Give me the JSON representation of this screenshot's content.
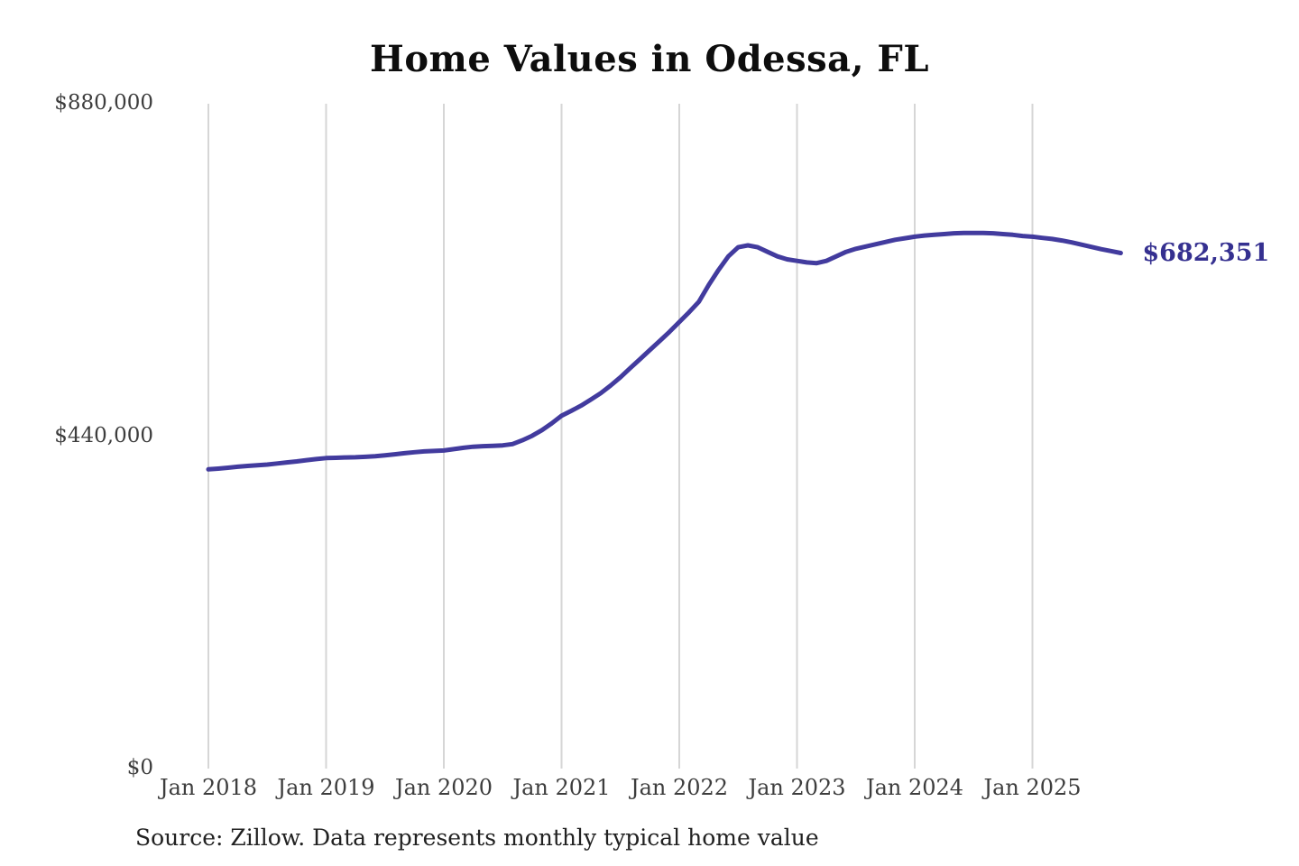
{
  "page": {
    "background_color": "#ffffff"
  },
  "chart_data": {
    "type": "line",
    "title": "Home Values in Odessa, FL",
    "source_note": "Source: Zillow. Data represents monthly typical home value",
    "xlabel": "",
    "ylabel": "",
    "ylim": [
      0,
      880000
    ],
    "grid": "vertical-yearly-gridlines-only",
    "legend": "none",
    "line_color": "#423b9e",
    "gridline_color": "#d6d6d6",
    "end_label": "$682,351",
    "end_value": 682351,
    "x_tick_labels": [
      "Jan 2018",
      "Jan 2019",
      "Jan 2020",
      "Jan 2021",
      "Jan 2022",
      "Jan 2023",
      "Jan 2024",
      "Jan 2025"
    ],
    "y_ticks": [
      {
        "label": "$0",
        "value": 0
      },
      {
        "label": "$440,000",
        "value": 440000
      },
      {
        "label": "$880,000",
        "value": 880000
      }
    ],
    "series": [
      {
        "name": "Monthly typical home value",
        "cadence": "monthly",
        "x_start": "2018-01",
        "x_end": "2025-10",
        "values": [
          396000,
          397000,
          398200,
          399500,
          400600,
          401500,
          402400,
          403800,
          405200,
          406600,
          408200,
          409700,
          411000,
          411400,
          411800,
          412000,
          412600,
          413400,
          414600,
          416000,
          417400,
          418800,
          419800,
          420400,
          421000,
          422800,
          424600,
          426000,
          426800,
          427200,
          427800,
          429500,
          434500,
          440500,
          448000,
          457000,
          467000,
          473500,
          480500,
          488500,
          497000,
          507000,
          518000,
          530000,
          542000,
          554000,
          566000,
          578000,
          591000,
          604000,
          618000,
          640000,
          660000,
          678000,
          690000,
          692500,
          690000,
          684000,
          678000,
          674000,
          672000,
          670000,
          669000,
          672000,
          678000,
          684000,
          688000,
          691000,
          694000,
          697000,
          700000,
          702000,
          704000,
          705500,
          706500,
          707500,
          708500,
          709000,
          709000,
          709000,
          708500,
          707500,
          706500,
          705000,
          704000,
          702500,
          701000,
          699000,
          696500,
          693500,
          690500,
          687500,
          685000,
          682351
        ]
      }
    ]
  }
}
